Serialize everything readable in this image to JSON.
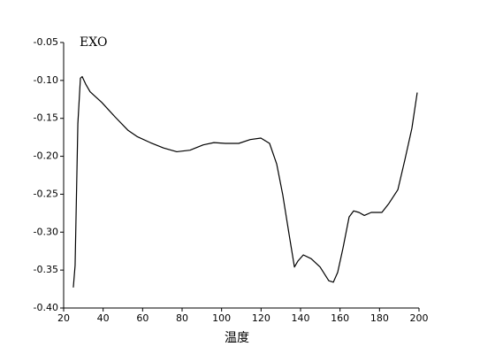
{
  "chart_data": {
    "type": "line",
    "annotation": "EXO",
    "x_label": "温度",
    "x": [
      24.9,
      25.8,
      27.2,
      28.5,
      29.4,
      31.2,
      33.4,
      39.3,
      46,
      52.7,
      57.2,
      63.9,
      70.6,
      77.3,
      84,
      90.7,
      96.1,
      101.9,
      108.7,
      114.5,
      119.9,
      124.3,
      127.9,
      131,
      134.2,
      136.9,
      138.7,
      141.4,
      145.4,
      149.9,
      154.3,
      156.6,
      158.8,
      161.5,
      164.6,
      166.9,
      169.6,
      172.3,
      175.8,
      181.2,
      184.8,
      189.3,
      192.9,
      196.4,
      199.1
    ],
    "values": [
      -0.373,
      -0.344,
      -0.157,
      -0.097,
      -0.095,
      -0.105,
      -0.115,
      -0.129,
      -0.148,
      -0.166,
      -0.174,
      -0.182,
      -0.189,
      -0.194,
      -0.192,
      -0.185,
      -0.182,
      -0.183,
      -0.183,
      -0.178,
      -0.176,
      -0.183,
      -0.21,
      -0.251,
      -0.303,
      -0.346,
      -0.338,
      -0.33,
      -0.335,
      -0.346,
      -0.364,
      -0.366,
      -0.353,
      -0.321,
      -0.28,
      -0.272,
      -0.274,
      -0.278,
      -0.274,
      -0.274,
      -0.262,
      -0.244,
      -0.204,
      -0.163,
      -0.116
    ],
    "color": "#000000",
    "xlim": [
      20,
      200
    ],
    "xticks": [
      20,
      40,
      60,
      80,
      100,
      120,
      140,
      160,
      180,
      200
    ],
    "ylim": [
      -0.4,
      -0.05
    ],
    "yticks": [
      {
        "value": -0.4,
        "label": "-0.40"
      },
      -0.35,
      {
        "value": -0.3,
        "label": "-0.30"
      },
      -0.25,
      {
        "value": -0.2,
        "label": "-0.20"
      },
      -0.15,
      {
        "value": -0.1,
        "label": "-0.10"
      },
      -0.05
    ],
    "grid": false
  }
}
